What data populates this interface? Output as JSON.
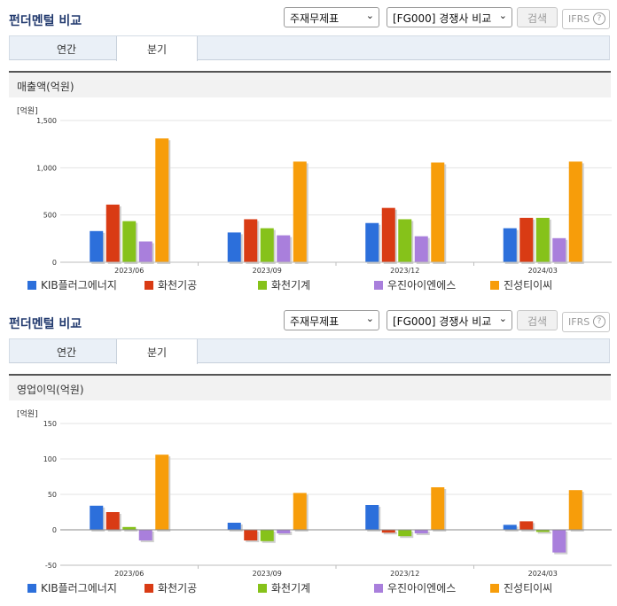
{
  "panels": [
    {
      "title": "펀더멘털 비교",
      "select_statement": "주재무제표",
      "select_compare": "[FG000] 경쟁사 비교",
      "search_label": "검색",
      "ifrs_label": "IFRS",
      "help_glyph": "?",
      "tabs": [
        "연간",
        "분기"
      ],
      "active_tab": 1,
      "metric_label": "매출액(억원)",
      "unit_label": "[억원]"
    },
    {
      "title": "펀더멘털 비교",
      "select_statement": "주재무제표",
      "select_compare": "[FG000] 경쟁사 비교",
      "search_label": "검색",
      "ifrs_label": "IFRS",
      "help_glyph": "?",
      "tabs": [
        "연간",
        "분기"
      ],
      "active_tab": 1,
      "metric_label": "영업이익(억원)",
      "unit_label": "[억원]"
    }
  ],
  "series_colors": [
    "#2c6fdb",
    "#d93b14",
    "#86c21a",
    "#a97fdc",
    "#f79d0a"
  ],
  "chart_data": [
    {
      "type": "bar",
      "title": "매출액(억원)",
      "ylabel": "[억원]",
      "categories": [
        "2023/06",
        "2023/09",
        "2023/12",
        "2024/03"
      ],
      "ylim": [
        0,
        1500
      ],
      "yticks": [
        "0",
        "500",
        "1,000",
        "1,500"
      ],
      "ytick_values": [
        0,
        500,
        1000,
        1500
      ],
      "legend": "bottom",
      "grid": true,
      "series": [
        {
          "name": "KIB플러그에너지",
          "values": [
            330,
            315,
            415,
            360
          ]
        },
        {
          "name": "화천기공",
          "values": [
            610,
            455,
            575,
            470
          ]
        },
        {
          "name": "화천기계",
          "values": [
            435,
            360,
            455,
            470
          ]
        },
        {
          "name": "우진아이엔에스",
          "values": [
            220,
            285,
            275,
            255
          ]
        },
        {
          "name": "진성티이씨",
          "values": [
            1310,
            1065,
            1055,
            1065
          ]
        }
      ]
    },
    {
      "type": "bar",
      "title": "영업이익(억원)",
      "ylabel": "[억원]",
      "categories": [
        "2023/06",
        "2023/09",
        "2023/12",
        "2024/03"
      ],
      "ylim": [
        -50,
        150
      ],
      "yticks": [
        "-50",
        "0",
        "50",
        "100",
        "150"
      ],
      "ytick_values": [
        -50,
        0,
        50,
        100,
        150
      ],
      "legend": "bottom",
      "grid": true,
      "series": [
        {
          "name": "KIB플러그에너지",
          "values": [
            34,
            10,
            35,
            7
          ]
        },
        {
          "name": "화천기공",
          "values": [
            25,
            -15,
            -4,
            12
          ]
        },
        {
          "name": "화천기계",
          "values": [
            4,
            -16,
            -9,
            -3
          ]
        },
        {
          "name": "우진아이엔에스",
          "values": [
            -15,
            -5,
            -5,
            -32
          ]
        },
        {
          "name": "진성티이씨",
          "values": [
            106,
            52,
            60,
            56
          ]
        }
      ]
    }
  ]
}
